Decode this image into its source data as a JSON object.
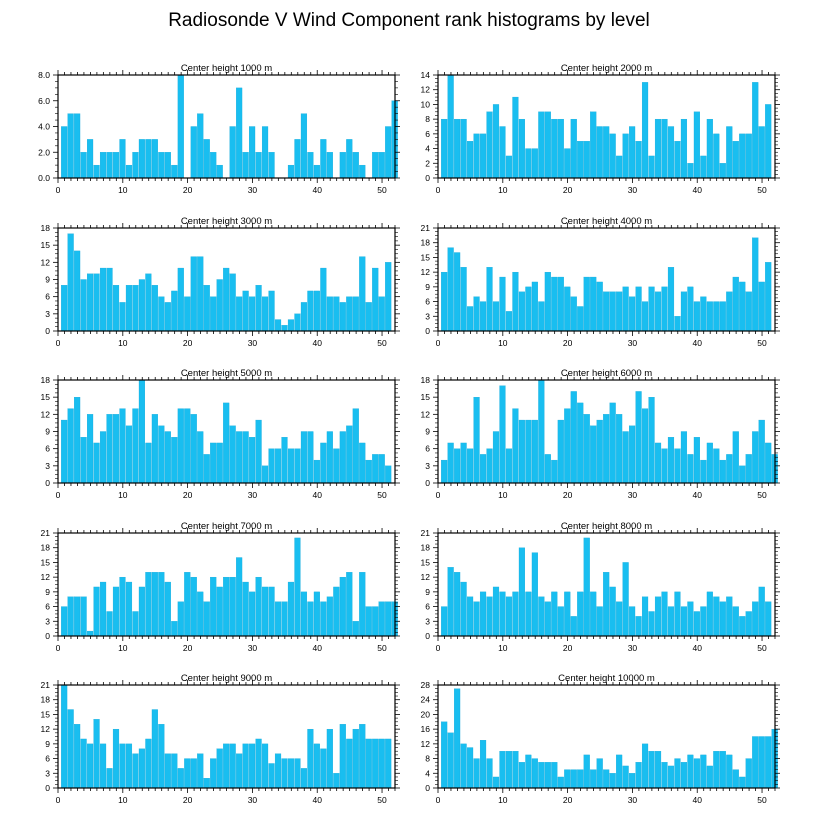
{
  "title": "Radiosonde V Wind Component rank histograms by level",
  "colors": {
    "bar": "#19BEF0",
    "bar_edge": "#0fa5d6",
    "axis": "#000000"
  },
  "chart_data": [
    {
      "type": "bar",
      "title": "Center height 1000 m",
      "xlim": [
        0,
        52
      ],
      "ylim": [
        0,
        8
      ],
      "xticks": [
        0,
        10,
        20,
        30,
        40,
        50
      ],
      "yticks": [
        0,
        2,
        4,
        6,
        8
      ],
      "ytick_labels": [
        "0.0",
        "2.0",
        "4.0",
        "6.0",
        "8.0"
      ],
      "values": [
        4,
        5,
        5,
        2,
        3,
        1,
        2,
        2,
        2,
        3,
        1,
        2,
        3,
        3,
        3,
        2,
        2,
        1,
        8,
        0,
        4,
        5,
        3,
        2,
        1,
        0,
        4,
        7,
        2,
        4,
        2,
        4,
        2,
        0,
        0,
        1,
        3,
        5,
        2,
        1,
        3,
        2,
        0,
        2,
        3,
        2,
        1,
        0,
        2,
        2,
        4,
        6
      ]
    },
    {
      "type": "bar",
      "title": "Center height 2000 m",
      "xlim": [
        0,
        52
      ],
      "ylim": [
        0,
        14
      ],
      "xticks": [
        0,
        10,
        20,
        30,
        40,
        50
      ],
      "yticks": [
        0,
        2,
        4,
        6,
        8,
        10,
        12,
        14
      ],
      "ytick_labels": [
        "0",
        "2",
        "4",
        "6",
        "8",
        "10",
        "12",
        "14"
      ],
      "values": [
        8,
        14,
        8,
        8,
        5,
        6,
        6,
        9,
        10,
        7,
        3,
        11,
        8,
        4,
        4,
        9,
        9,
        8,
        8,
        4,
        8,
        5,
        5,
        9,
        7,
        7,
        6,
        3,
        6,
        7,
        5,
        13,
        3,
        8,
        8,
        7,
        5,
        8,
        2,
        9,
        3,
        8,
        6,
        2,
        7,
        5,
        6,
        6,
        13,
        7,
        10
      ]
    },
    {
      "type": "bar",
      "title": "Center height 3000 m",
      "xlim": [
        0,
        52
      ],
      "ylim": [
        0,
        18
      ],
      "xticks": [
        0,
        10,
        20,
        30,
        40,
        50
      ],
      "yticks": [
        0,
        3,
        6,
        9,
        12,
        15,
        18
      ],
      "ytick_labels": [
        "0",
        "3",
        "6",
        "9",
        "12",
        "15",
        "18"
      ],
      "values": [
        8,
        17,
        14,
        9,
        10,
        10,
        11,
        11,
        8,
        5,
        8,
        8,
        9,
        10,
        8,
        6,
        5,
        7,
        11,
        6,
        13,
        13,
        8,
        6,
        9,
        11,
        10,
        6,
        7,
        6,
        8,
        6,
        7,
        2,
        1,
        2,
        3,
        5,
        7,
        7,
        11,
        6,
        6,
        5,
        6,
        6,
        13,
        5,
        11,
        6,
        12
      ]
    },
    {
      "type": "bar",
      "title": "Center height 4000 m",
      "xlim": [
        0,
        52
      ],
      "ylim": [
        0,
        21
      ],
      "xticks": [
        0,
        10,
        20,
        30,
        40,
        50
      ],
      "yticks": [
        0,
        3,
        6,
        9,
        12,
        15,
        18,
        21
      ],
      "ytick_labels": [
        "0",
        "3",
        "6",
        "9",
        "12",
        "15",
        "18",
        "21"
      ],
      "values": [
        12,
        17,
        16,
        13,
        5,
        7,
        6,
        13,
        6,
        11,
        4,
        12,
        8,
        9,
        10,
        6,
        12,
        11,
        11,
        9,
        7,
        5,
        11,
        11,
        10,
        8,
        8,
        8,
        9,
        7,
        9,
        6,
        9,
        8,
        9,
        13,
        3,
        8,
        9,
        6,
        7,
        6,
        6,
        6,
        8,
        11,
        10,
        8,
        19,
        10,
        14
      ]
    },
    {
      "type": "bar",
      "title": "Center height 5000 m",
      "xlim": [
        0,
        52
      ],
      "ylim": [
        0,
        18
      ],
      "xticks": [
        0,
        10,
        20,
        30,
        40,
        50
      ],
      "yticks": [
        0,
        3,
        6,
        9,
        12,
        15,
        18
      ],
      "ytick_labels": [
        "0",
        "3",
        "6",
        "9",
        "12",
        "15",
        "18"
      ],
      "values": [
        11,
        13,
        15,
        8,
        12,
        7,
        9,
        12,
        12,
        13,
        10,
        13,
        18,
        7,
        12,
        10,
        9,
        8,
        13,
        13,
        12,
        9,
        5,
        7,
        7,
        14,
        10,
        9,
        9,
        8,
        11,
        3,
        6,
        6,
        8,
        6,
        6,
        9,
        9,
        4,
        7,
        9,
        6,
        9,
        10,
        13,
        7,
        4,
        5,
        5,
        3
      ]
    },
    {
      "type": "bar",
      "title": "Center height 6000 m",
      "xlim": [
        0,
        52
      ],
      "ylim": [
        0,
        18
      ],
      "xticks": [
        0,
        10,
        20,
        30,
        40,
        50
      ],
      "yticks": [
        0,
        3,
        6,
        9,
        12,
        15,
        18
      ],
      "ytick_labels": [
        "0",
        "3",
        "6",
        "9",
        "12",
        "15",
        "18"
      ],
      "values": [
        4,
        7,
        6,
        7,
        6,
        15,
        5,
        6,
        9,
        17,
        6,
        13,
        11,
        11,
        11,
        18,
        5,
        4,
        11,
        13,
        16,
        14,
        12,
        10,
        11,
        12,
        14,
        12,
        9,
        10,
        16,
        13,
        15,
        7,
        6,
        8,
        6,
        9,
        5,
        8,
        4,
        7,
        6,
        4,
        5,
        9,
        3,
        5,
        9,
        11,
        7,
        5
      ]
    },
    {
      "type": "bar",
      "title": "Center height 7000 m",
      "xlim": [
        0,
        52
      ],
      "ylim": [
        0,
        21
      ],
      "xticks": [
        0,
        10,
        20,
        30,
        40,
        50
      ],
      "yticks": [
        0,
        3,
        6,
        9,
        12,
        15,
        18,
        21
      ],
      "ytick_labels": [
        "0",
        "3",
        "6",
        "9",
        "12",
        "15",
        "18",
        "21"
      ],
      "values": [
        6,
        8,
        8,
        8,
        1,
        10,
        11,
        5,
        10,
        12,
        11,
        5,
        10,
        13,
        13,
        13,
        11,
        3,
        7,
        13,
        12,
        9,
        7,
        12,
        10,
        12,
        12,
        16,
        11,
        9,
        12,
        10,
        10,
        7,
        7,
        11,
        20,
        9,
        7,
        9,
        7,
        8,
        10,
        12,
        13,
        3,
        13,
        6,
        6,
        7,
        7,
        7
      ]
    },
    {
      "type": "bar",
      "title": "Center height 8000 m",
      "xlim": [
        0,
        52
      ],
      "ylim": [
        0,
        21
      ],
      "xticks": [
        0,
        10,
        20,
        30,
        40,
        50
      ],
      "yticks": [
        0,
        3,
        6,
        9,
        12,
        15,
        18,
        21
      ],
      "ytick_labels": [
        "0",
        "3",
        "6",
        "9",
        "12",
        "15",
        "18",
        "21"
      ],
      "values": [
        6,
        14,
        13,
        11,
        8,
        7,
        9,
        8,
        10,
        9,
        8,
        9,
        18,
        9,
        17,
        8,
        7,
        9,
        6,
        9,
        4,
        9,
        20,
        9,
        6,
        13,
        10,
        7,
        15,
        6,
        4,
        8,
        5,
        8,
        9,
        6,
        9,
        6,
        7,
        5,
        6,
        9,
        8,
        7,
        8,
        6,
        4,
        5,
        7,
        10,
        7
      ]
    },
    {
      "type": "bar",
      "title": "Center height 9000 m",
      "xlim": [
        0,
        52
      ],
      "ylim": [
        0,
        21
      ],
      "xticks": [
        0,
        10,
        20,
        30,
        40,
        50
      ],
      "yticks": [
        0,
        3,
        6,
        9,
        12,
        15,
        18,
        21
      ],
      "ytick_labels": [
        "0",
        "3",
        "6",
        "9",
        "12",
        "15",
        "18",
        "21"
      ],
      "values": [
        21,
        16,
        13,
        10,
        9,
        14,
        9,
        4,
        12,
        9,
        9,
        7,
        8,
        10,
        16,
        13,
        7,
        7,
        4,
        6,
        6,
        7,
        2,
        6,
        8,
        9,
        9,
        7,
        9,
        9,
        10,
        9,
        5,
        7,
        6,
        6,
        6,
        4,
        12,
        9,
        8,
        12,
        3,
        13,
        10,
        12,
        13,
        10,
        10,
        10,
        10
      ]
    },
    {
      "type": "bar",
      "title": "Center height 10000 m",
      "xlim": [
        0,
        52
      ],
      "ylim": [
        0,
        28
      ],
      "xticks": [
        0,
        10,
        20,
        30,
        40,
        50
      ],
      "yticks": [
        0,
        4,
        8,
        12,
        16,
        20,
        24,
        28
      ],
      "ytick_labels": [
        "0",
        "4",
        "8",
        "12",
        "16",
        "20",
        "24",
        "28"
      ],
      "values": [
        18,
        15,
        27,
        12,
        11,
        8,
        13,
        8,
        3,
        10,
        10,
        10,
        7,
        9,
        8,
        7,
        7,
        7,
        3,
        5,
        5,
        5,
        9,
        5,
        8,
        5,
        4,
        9,
        6,
        4,
        7,
        12,
        10,
        10,
        7,
        6,
        8,
        7,
        9,
        8,
        9,
        6,
        10,
        10,
        9,
        5,
        3,
        8,
        14,
        14,
        14,
        16
      ]
    }
  ]
}
